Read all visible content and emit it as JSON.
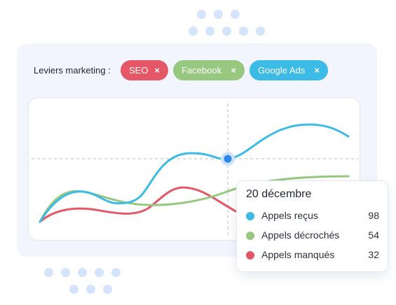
{
  "filters": {
    "label": "Leviers marketing :",
    "chips": [
      {
        "label": "SEO",
        "remove_icon": "×",
        "color": "#e55766"
      },
      {
        "label": "Facebook",
        "remove_icon": "×",
        "color": "#98c77f"
      },
      {
        "label": "Google Ads",
        "remove_icon": "×",
        "color": "#3bbbe6"
      }
    ]
  },
  "colors": {
    "appels_recus": "#3bbbe6",
    "appels_decroches": "#98c77f",
    "appels_manques": "#e55766",
    "highlight_point": "#2f86ea"
  },
  "tooltip": {
    "title": "20 décembre",
    "rows": [
      {
        "name": "Appels reçus",
        "value": "98"
      },
      {
        "name": "Appels décrochés",
        "value": "54"
      },
      {
        "name": "Appels manqués",
        "value": "32"
      }
    ]
  }
}
